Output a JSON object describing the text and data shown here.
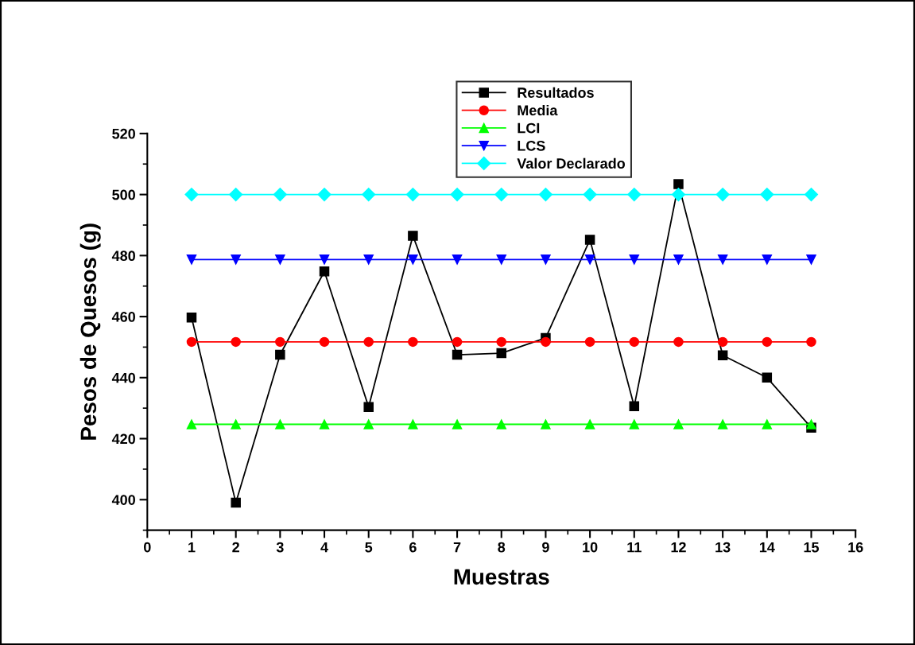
{
  "chart_data": {
    "type": "line",
    "xlabel": "Muestras",
    "ylabel": "Pesos de Quesos (g)",
    "x": [
      1,
      2,
      3,
      4,
      5,
      6,
      7,
      8,
      9,
      10,
      11,
      12,
      13,
      14,
      15
    ],
    "series": [
      {
        "name": "Resultados",
        "color": "#000000",
        "marker": "square",
        "values": [
          459.7,
          399,
          447.5,
          474.8,
          430.4,
          486.5,
          447.5,
          448,
          453,
          485.2,
          430.6,
          503.4,
          447.3,
          440,
          423.6
        ]
      },
      {
        "name": "Media",
        "color": "#ff0000",
        "marker": "circle",
        "values": [
          451.7,
          451.7,
          451.7,
          451.7,
          451.7,
          451.7,
          451.7,
          451.7,
          451.7,
          451.7,
          451.7,
          451.7,
          451.7,
          451.7,
          451.7
        ]
      },
      {
        "name": "LCI",
        "color": "#00ff00",
        "marker": "triangle",
        "values": [
          424.7,
          424.7,
          424.7,
          424.7,
          424.7,
          424.7,
          424.7,
          424.7,
          424.7,
          424.7,
          424.7,
          424.7,
          424.7,
          424.7,
          424.7
        ]
      },
      {
        "name": "LCS",
        "color": "#0000ff",
        "marker": "triangle_down",
        "values": [
          478.7,
          478.7,
          478.7,
          478.7,
          478.7,
          478.7,
          478.7,
          478.7,
          478.7,
          478.7,
          478.7,
          478.7,
          478.7,
          478.7,
          478.7
        ]
      },
      {
        "name": "Valor Declarado",
        "color": "#00ffff",
        "marker": "diamond",
        "values": [
          500,
          500,
          500,
          500,
          500,
          500,
          500,
          500,
          500,
          500,
          500,
          500,
          500,
          500,
          500
        ]
      }
    ],
    "xlim": [
      0,
      16
    ],
    "xticks": [
      0,
      1,
      2,
      3,
      4,
      5,
      6,
      7,
      8,
      9,
      10,
      11,
      12,
      13,
      14,
      15,
      16
    ],
    "ylim": [
      390,
      520
    ],
    "yticks": [
      400,
      420,
      440,
      460,
      480,
      500,
      520
    ],
    "grid": false,
    "legend": "top",
    "line_style": "solid"
  }
}
